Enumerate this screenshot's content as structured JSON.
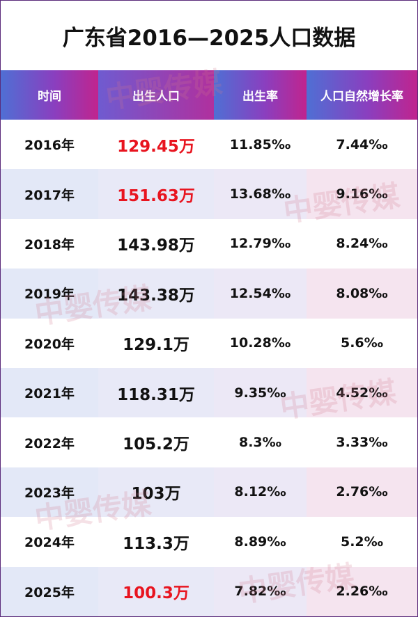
{
  "title": "广东省2016—2025人口数据",
  "headers": [
    "时间",
    "出生人口",
    "出生率",
    "人口自然增长率"
  ],
  "rows": [
    {
      "year": "2016年",
      "births": "129.45万",
      "birth_rate": "11.85‰",
      "growth_rate": "7.44‰",
      "highlight": true
    },
    {
      "year": "2017年",
      "births": "151.63万",
      "birth_rate": "13.68‰",
      "growth_rate": "9.16‰",
      "highlight": true
    },
    {
      "year": "2018年",
      "births": "143.98万",
      "birth_rate": "12.79‰",
      "growth_rate": "8.24‰",
      "highlight": false
    },
    {
      "year": "2019年",
      "births": "143.38万",
      "birth_rate": "12.54‰",
      "growth_rate": "8.08‰",
      "highlight": false
    },
    {
      "year": "2020年",
      "births": "129.1万",
      "birth_rate": "10.28‰",
      "growth_rate": "5.6‰",
      "highlight": false
    },
    {
      "year": "2021年",
      "births": "118.31万",
      "birth_rate": "9.35‰",
      "growth_rate": "4.52‰",
      "highlight": false
    },
    {
      "year": "2022年",
      "births": "105.2万",
      "birth_rate": "8.3‰",
      "growth_rate": "3.33‰",
      "highlight": false
    },
    {
      "year": "2023年",
      "births": "103万",
      "birth_rate": "8.12‰",
      "growth_rate": "2.76‰",
      "highlight": false
    },
    {
      "year": "2024年",
      "births": "113.3万",
      "birth_rate": "8.89‰",
      "growth_rate": "5.2‰",
      "highlight": false
    },
    {
      "year": "2025年",
      "births": "100.3万",
      "birth_rate": "7.82‰",
      "growth_rate": "2.26‰",
      "highlight": true
    }
  ],
  "watermark": "中婴传媒",
  "colors": {
    "highlight_red": "#e8141f",
    "header_start": "#4f6fd4",
    "header_end": "#c0248e"
  }
}
